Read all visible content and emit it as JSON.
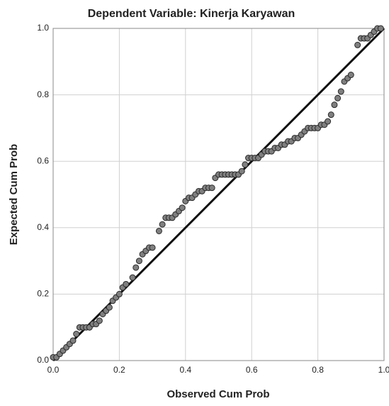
{
  "chart_data": {
    "type": "scatter",
    "title": "Dependent Variable: Kinerja Karyawan",
    "x_label": "Observed Cum Prob",
    "y_label": "Expected Cum Prob",
    "xlim": [
      0,
      1
    ],
    "ylim": [
      0,
      1
    ],
    "xticks": [
      {
        "value": 0,
        "label": "0.0"
      },
      0.2,
      0.4,
      0.6,
      0.8,
      {
        "value": 1,
        "label": "1.0"
      }
    ],
    "yticks": [
      {
        "value": 0,
        "label": "0.0"
      },
      0.2,
      0.4,
      0.6,
      0.8,
      {
        "value": 1,
        "label": "1.0"
      }
    ],
    "grid": true,
    "color": "#7f7f7f",
    "reference_line": {
      "x": [
        0,
        1
      ],
      "y": [
        0,
        1
      ],
      "color": "#111111"
    },
    "x": [
      0.0,
      0.01,
      0.02,
      0.03,
      0.04,
      0.05,
      0.06,
      0.07,
      0.08,
      0.09,
      0.1,
      0.11,
      0.12,
      0.13,
      0.14,
      0.15,
      0.16,
      0.17,
      0.18,
      0.19,
      0.2,
      0.21,
      0.22,
      0.24,
      0.25,
      0.26,
      0.27,
      0.28,
      0.29,
      0.3,
      0.32,
      0.33,
      0.34,
      0.35,
      0.36,
      0.37,
      0.38,
      0.39,
      0.4,
      0.41,
      0.42,
      0.43,
      0.44,
      0.45,
      0.46,
      0.47,
      0.48,
      0.49,
      0.5,
      0.51,
      0.52,
      0.53,
      0.54,
      0.55,
      0.56,
      0.57,
      0.58,
      0.59,
      0.6,
      0.61,
      0.62,
      0.63,
      0.64,
      0.65,
      0.66,
      0.67,
      0.68,
      0.69,
      0.7,
      0.71,
      0.72,
      0.73,
      0.74,
      0.75,
      0.76,
      0.77,
      0.78,
      0.79,
      0.8,
      0.81,
      0.82,
      0.83,
      0.84,
      0.85,
      0.86,
      0.87,
      0.88,
      0.89,
      0.9,
      0.92,
      0.93,
      0.94,
      0.95,
      0.96,
      0.97,
      0.98,
      0.99
    ],
    "values": [
      0.01,
      0.01,
      0.02,
      0.03,
      0.04,
      0.05,
      0.06,
      0.08,
      0.1,
      0.1,
      0.1,
      0.1,
      0.11,
      0.11,
      0.12,
      0.14,
      0.15,
      0.16,
      0.18,
      0.19,
      0.2,
      0.22,
      0.23,
      0.25,
      0.28,
      0.3,
      0.32,
      0.33,
      0.34,
      0.34,
      0.39,
      0.41,
      0.43,
      0.43,
      0.43,
      0.44,
      0.45,
      0.46,
      0.48,
      0.49,
      0.49,
      0.5,
      0.51,
      0.51,
      0.52,
      0.52,
      0.52,
      0.55,
      0.56,
      0.56,
      0.56,
      0.56,
      0.56,
      0.56,
      0.56,
      0.57,
      0.59,
      0.61,
      0.61,
      0.61,
      0.61,
      0.62,
      0.63,
      0.63,
      0.63,
      0.64,
      0.64,
      0.65,
      0.65,
      0.66,
      0.66,
      0.67,
      0.67,
      0.68,
      0.69,
      0.7,
      0.7,
      0.7,
      0.7,
      0.71,
      0.71,
      0.72,
      0.74,
      0.77,
      0.79,
      0.81,
      0.84,
      0.85,
      0.86,
      0.95,
      0.97,
      0.97,
      0.97,
      0.98,
      0.99,
      1.0,
      1.0
    ]
  }
}
